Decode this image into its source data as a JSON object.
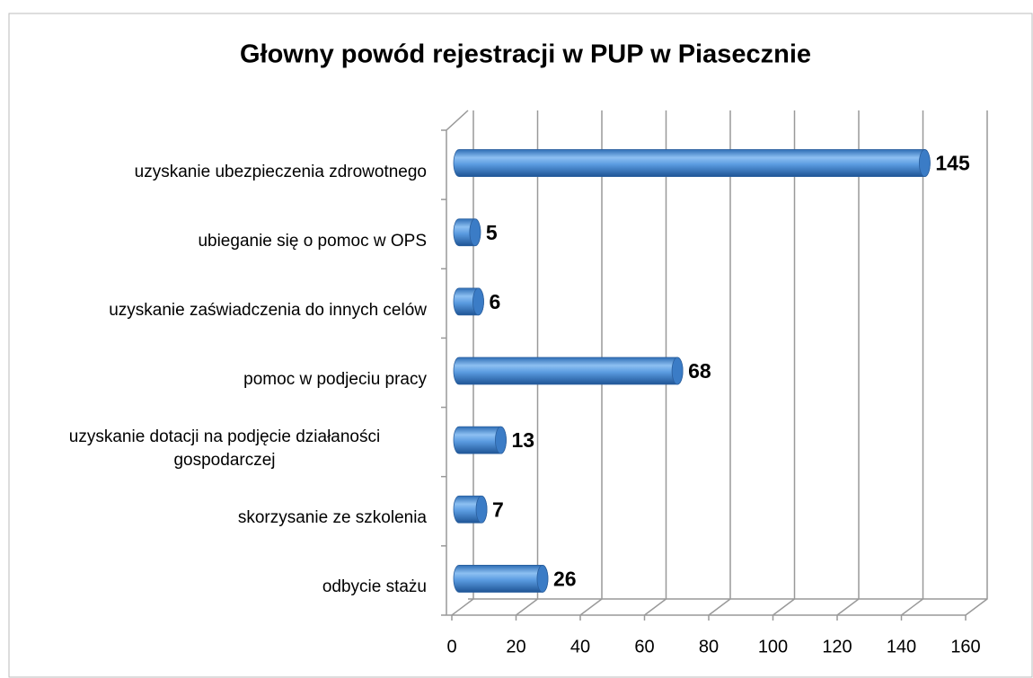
{
  "chart_data": {
    "type": "bar",
    "orientation": "horizontal",
    "title": "Głowny powód rejestracji w PUP w Piasecznie",
    "categories": [
      "uzyskanie ubezpieczenia zdrowotnego",
      "ubieganie się o pomoc w OPS",
      "uzyskanie zaświadczenia do innych celów",
      "pomoc w podjeciu pracy",
      "uzyskanie dotacji na podjęcie działaności gospodarczej",
      "skorzysanie ze szkolenia",
      "odbycie stażu"
    ],
    "values": [
      145,
      5,
      6,
      68,
      13,
      7,
      26
    ],
    "color": "#4a8fd6",
    "xlim": [
      0,
      160
    ],
    "xticks": [
      0,
      20,
      40,
      60,
      80,
      100,
      120,
      140,
      160
    ],
    "grid": true
  }
}
